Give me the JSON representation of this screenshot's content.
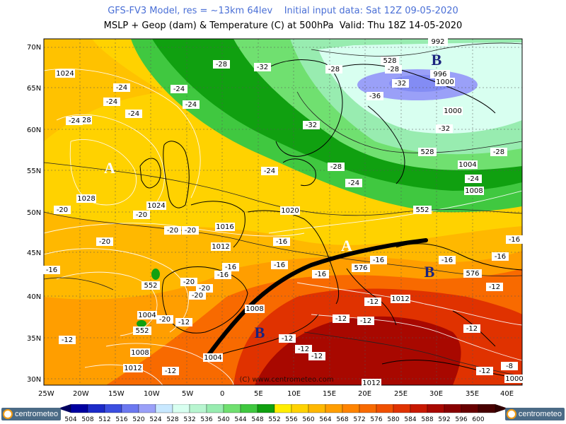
{
  "header": {
    "line1": "GFS-FV3 Model, res = ~13km 64lev    Initial input data: Sat 12Z 09-05-2020",
    "line2": "MSLP + Geop (dam) & Temperature (C) at 500hPa  Valid: Thu 18Z 14-05-2020"
  },
  "map": {
    "lat_labels": [
      "70N",
      "65N",
      "60N",
      "55N",
      "50N",
      "45N",
      "40N",
      "35N",
      "30N"
    ],
    "lon_labels": [
      "25W",
      "20W",
      "15W",
      "10W",
      "5W",
      "0",
      "5E",
      "10E",
      "15E",
      "20E",
      "25E",
      "30E",
      "35E",
      "40E"
    ],
    "pressure_centers": [
      {
        "label": "A",
        "type": "high"
      },
      {
        "label": "B",
        "type": "low"
      },
      {
        "label": "B",
        "type": "low"
      },
      {
        "label": "B",
        "type": "low"
      },
      {
        "label": "A",
        "type": "high"
      }
    ],
    "isobar_labels": [
      "1024",
      "1028",
      "1028",
      "1024",
      "1020",
      "1016",
      "1012",
      "1008",
      "1004",
      "1004",
      "1008",
      "1012",
      "992",
      "996",
      "1000",
      "1000",
      "1004",
      "1008",
      "1012",
      "1012",
      "1000"
    ],
    "geopotential_labels": [
      "528",
      "528",
      "552",
      "552",
      "552",
      "576",
      "576"
    ],
    "temperature_labels": [
      "-24",
      "-24",
      "-24",
      "-24",
      "-28",
      "-32",
      "-28",
      "-28",
      "-32",
      "-36",
      "-32",
      "-28",
      "-24",
      "-28",
      "-24",
      "-24",
      "-32",
      "-20",
      "-20",
      "-20",
      "-20",
      "-20",
      "-16",
      "-16",
      "-16",
      "-16",
      "-16",
      "-20",
      "-20",
      "-20",
      "-12",
      "-12",
      "-12",
      "-12",
      "-12",
      "-12",
      "-12",
      "-12",
      "-12",
      "-16",
      "-16",
      "-16",
      "-16",
      "-12",
      "-12",
      "-20",
      "-16",
      "-24",
      "-24",
      "-12",
      "-8"
    ],
    "watermark": "(C) www.centrometeo.com"
  },
  "colorbar": {
    "values": [
      "504",
      "508",
      "512",
      "516",
      "520",
      "524",
      "528",
      "532",
      "536",
      "540",
      "544",
      "548",
      "552",
      "556",
      "560",
      "564",
      "568",
      "572",
      "576",
      "580",
      "584",
      "588",
      "592",
      "596",
      "600"
    ],
    "colors": [
      "#0000a0",
      "#1c2ac8",
      "#3b4ee0",
      "#6c78f0",
      "#9aa0f8",
      "#c8e8ff",
      "#d8fff0",
      "#b8f5d0",
      "#98ecb0",
      "#70e070",
      "#40c840",
      "#10a010",
      "#ffee00",
      "#ffd200",
      "#ffb800",
      "#ff9e00",
      "#ff8400",
      "#f86a00",
      "#f05000",
      "#e03200",
      "#c81800",
      "#a80800",
      "#880000",
      "#680000",
      "#480000"
    ]
  },
  "branding": {
    "left_logo": "centrometeo",
    "right_logo": "centrometeo"
  }
}
